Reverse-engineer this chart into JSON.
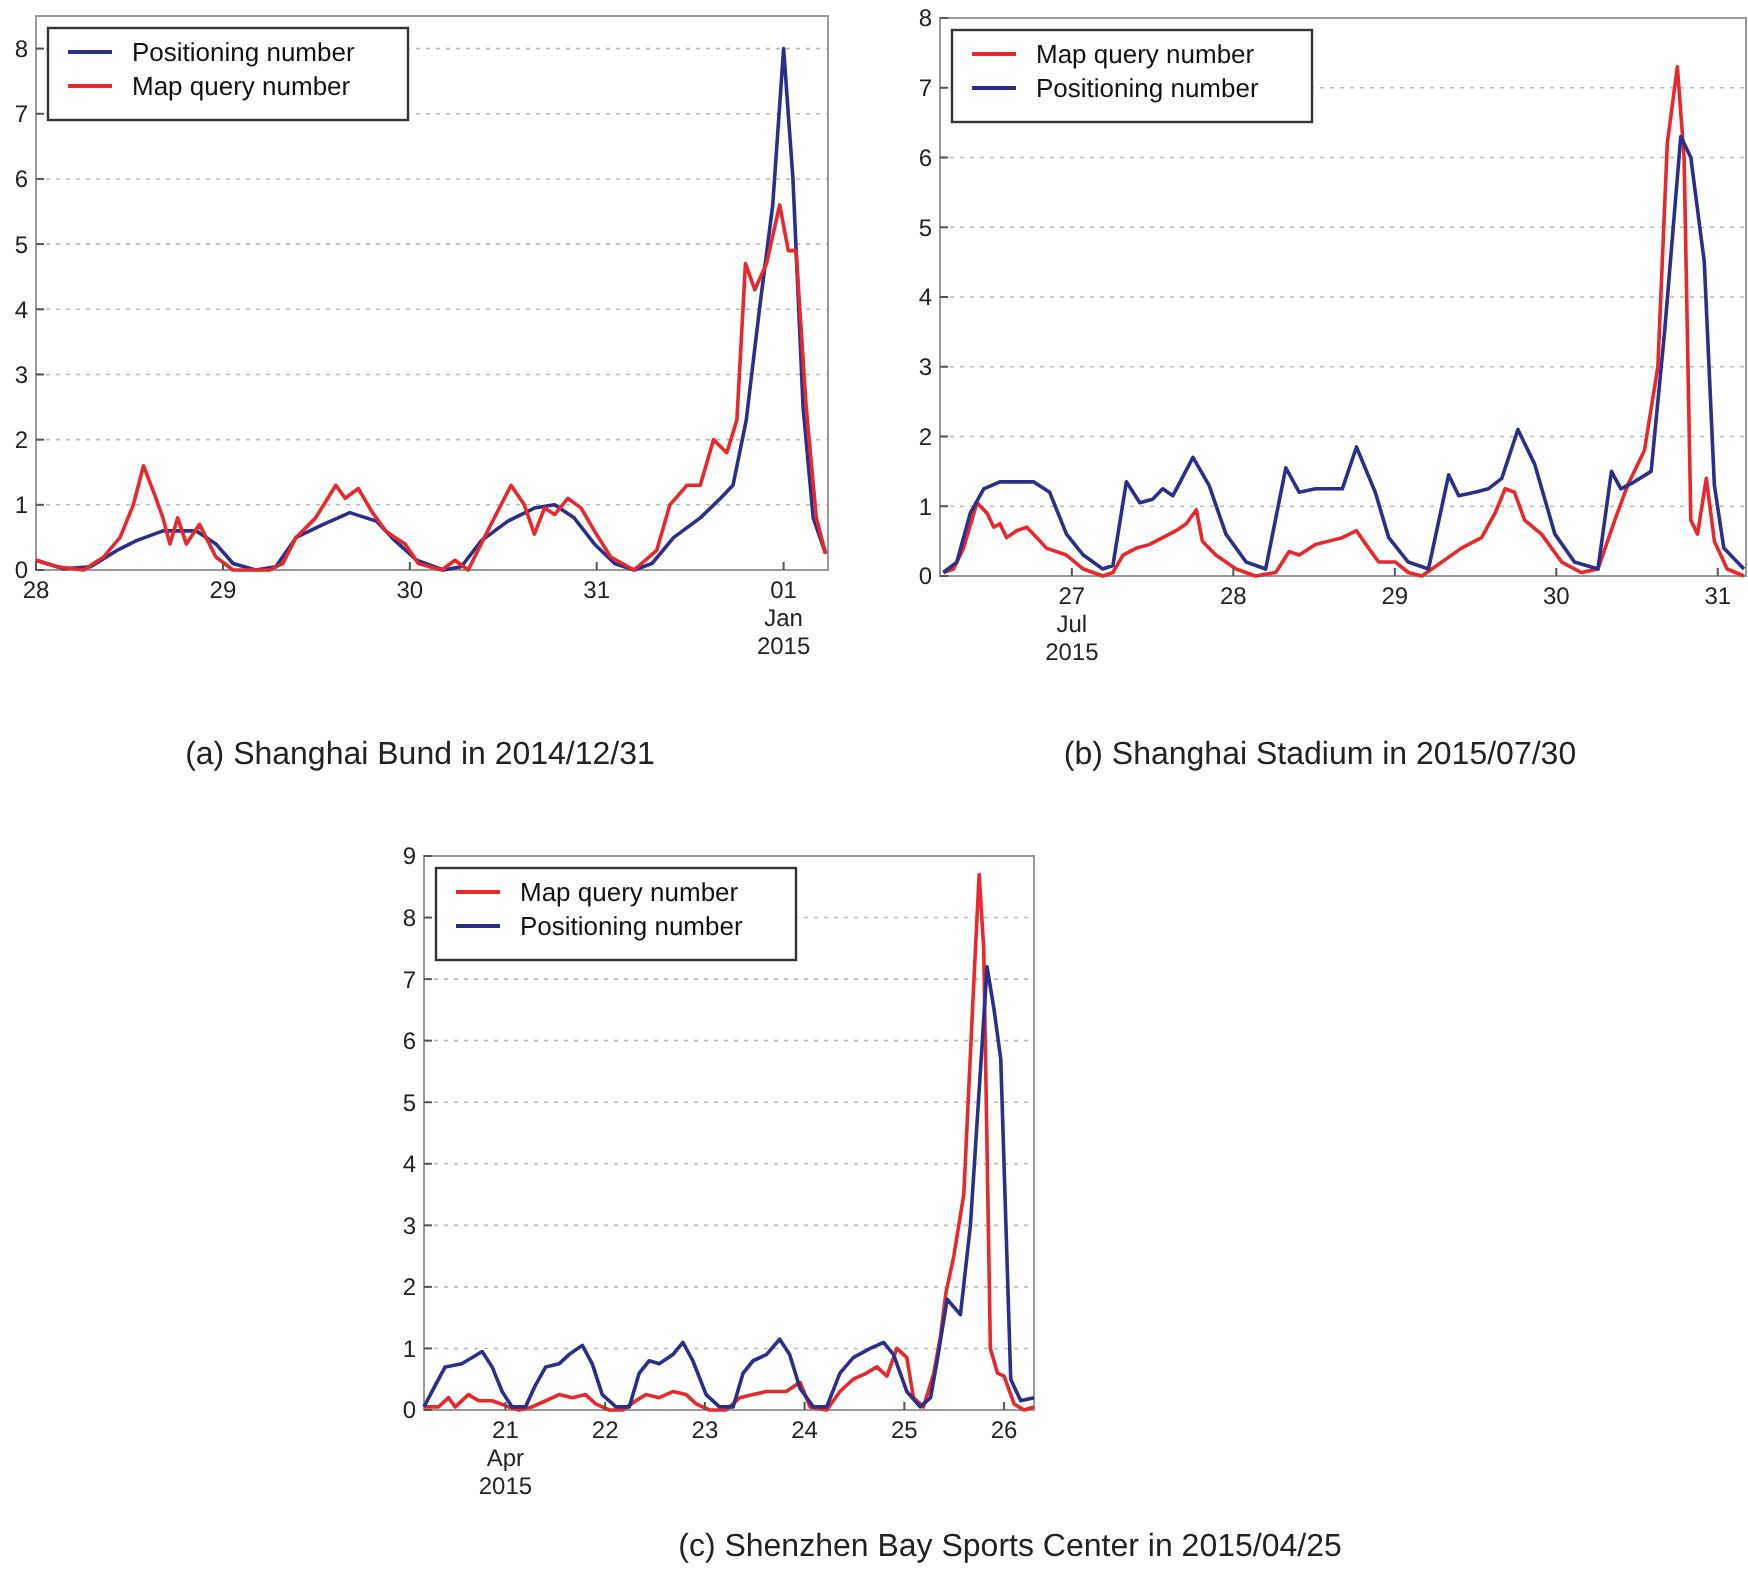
{
  "chart_data": [
    {
      "type": "line",
      "title": "(a) Shanghai Bund in 2014/12/31",
      "xlim": [
        "2014-12-28T00:00",
        "2015-01-01T05:42"
      ],
      "ylim": [
        0,
        8.5
      ],
      "yticks": [
        0,
        1,
        2,
        3,
        4,
        5,
        6,
        7,
        8
      ],
      "xticks": [
        {
          "value": "2014-12-28",
          "label": "28"
        },
        {
          "value": "2014-12-29",
          "label": "29"
        },
        {
          "value": "2014-12-30",
          "label": "30"
        },
        {
          "value": "2014-12-31",
          "label": "31"
        },
        {
          "value": "2015-01-01",
          "label": "01\nJan\n2015"
        }
      ],
      "grid": "y",
      "legend": "top left",
      "marker": "none",
      "line_style": "solid",
      "series": [
        {
          "name": "Positioning number",
          "color": "#2b2f8c",
          "x": [
            "2014-12-28T00:00",
            "2014-12-28T03:36",
            "2014-12-28T07:00",
            "2014-12-28T10:24",
            "2014-12-28T12:54",
            "2014-12-28T16:18",
            "2014-12-28T20:36",
            "2014-12-28T23:06",
            "2014-12-29T01:18",
            "2014-12-29T04:12",
            "2014-12-29T06:48",
            "2014-12-29T09:24",
            "2014-12-29T12:54",
            "2014-12-29T16:18",
            "2014-12-29T19:42",
            "2014-12-29T22:06",
            "2014-12-30T00:54",
            "2014-12-30T04:18",
            "2014-12-30T06:36",
            "2014-12-30T09:12",
            "2014-12-30T12:36",
            "2014-12-30T16:00",
            "2014-12-30T18:36",
            "2014-12-30T21:06",
            "2014-12-30T23:42",
            "2014-12-31T02:18",
            "2014-12-31T04:48",
            "2014-12-31T07:06",
            "2014-12-31T09:54",
            "2014-12-31T13:18",
            "2014-12-31T15:54",
            "2014-12-31T17:30",
            "2014-12-31T19:12",
            "2014-12-31T20:54",
            "2014-12-31T22:36",
            "2015-01-01T00:00",
            "2015-01-01T01:12",
            "2015-01-01T02:30",
            "2015-01-01T03:48",
            "2015-01-01T05:24"
          ],
          "values": [
            0.15,
            0.02,
            0.05,
            0.3,
            0.45,
            0.6,
            0.6,
            0.4,
            0.1,
            0,
            0.05,
            0.5,
            0.7,
            0.88,
            0.75,
            0.45,
            0.15,
            0,
            0.05,
            0.45,
            0.75,
            0.95,
            1,
            0.8,
            0.4,
            0.1,
            0,
            0.1,
            0.5,
            0.8,
            1.1,
            1.3,
            2.3,
            4,
            5.6,
            8,
            6,
            2.5,
            0.8,
            0.25
          ]
        },
        {
          "name": "Map query number",
          "color": "#e8282b",
          "x": [
            "2014-12-28T00:00",
            "2014-12-28T02:42",
            "2014-12-28T06:06",
            "2014-12-28T08:42",
            "2014-12-28T10:48",
            "2014-12-28T12:30",
            "2014-12-28T13:48",
            "2014-12-28T15:06",
            "2014-12-28T16:18",
            "2014-12-28T17:12",
            "2014-12-28T18:12",
            "2014-12-28T19:18",
            "2014-12-28T21:00",
            "2014-12-28T23:06",
            "2014-12-29T01:18",
            "2014-12-29T06:00",
            "2014-12-29T07:42",
            "2014-12-29T09:24",
            "2014-12-29T11:54",
            "2014-12-29T14:30",
            "2014-12-29T15:42",
            "2014-12-29T17:24",
            "2014-12-29T19:06",
            "2014-12-29T20:54",
            "2014-12-29T22:06",
            "2014-12-29T23:24",
            "2014-12-30T01:06",
            "2014-12-30T04:06",
            "2014-12-30T05:48",
            "2014-12-30T07:30",
            "2014-12-30T10:00",
            "2014-12-30T13:00",
            "2014-12-30T14:42",
            "2014-12-30T16:00",
            "2014-12-30T17:18",
            "2014-12-30T18:36",
            "2014-12-30T20:18",
            "2014-12-30T22:00",
            "2014-12-30T23:42",
            "2014-12-31T01:48",
            "2014-12-31T04:48",
            "2014-12-31T07:42",
            "2014-12-31T09:24",
            "2014-12-31T11:36",
            "2014-12-31T13:18",
            "2014-12-31T15:00",
            "2014-12-31T16:42",
            "2014-12-31T18:00",
            "2014-12-31T19:06",
            "2014-12-31T20:18",
            "2014-12-31T21:48",
            "2014-12-31T23:30",
            "2015-01-01T00:36",
            "2015-01-01T01:36",
            "2015-01-01T02:54",
            "2015-01-01T04:12",
            "2015-01-01T05:24"
          ],
          "values": [
            0.15,
            0.05,
            0,
            0.2,
            0.5,
            1,
            1.6,
            1.2,
            0.8,
            0.4,
            0.8,
            0.4,
            0.7,
            0.2,
            0,
            0,
            0.1,
            0.5,
            0.8,
            1.3,
            1.1,
            1.25,
            0.9,
            0.6,
            0.5,
            0.4,
            0.1,
            0,
            0.15,
            0,
            0.6,
            1.3,
            1,
            0.55,
            0.95,
            0.85,
            1.1,
            0.95,
            0.6,
            0.2,
            0,
            0.3,
            1,
            1.3,
            1.3,
            2,
            1.8,
            2.3,
            4.7,
            4.3,
            4.7,
            5.6,
            4.9,
            4.9,
            2.5,
            0.8,
            0.25
          ]
        }
      ]
    },
    {
      "type": "line",
      "title": "(b) Shanghai Stadium in 2015/07/30",
      "xlim": [
        "2015-07-26T04:24",
        "2015-07-31T04:12"
      ],
      "ylim": [
        0,
        8
      ],
      "yticks": [
        0,
        1,
        2,
        3,
        4,
        5,
        6,
        7,
        8
      ],
      "xticks": [
        {
          "value": "2015-07-27",
          "label": "27\nJul\n2015"
        },
        {
          "value": "2015-07-28",
          "label": "28"
        },
        {
          "value": "2015-07-29",
          "label": "29"
        },
        {
          "value": "2015-07-30",
          "label": "30"
        },
        {
          "value": "2015-07-31",
          "label": "31"
        }
      ],
      "grid": "y",
      "legend": "top left",
      "marker": "none",
      "line_style": "solid",
      "series": [
        {
          "name": "Map query number",
          "color": "#e8282b",
          "x": [
            "2015-07-26T04:54",
            "2015-07-26T06:24",
            "2015-07-26T07:54",
            "2015-07-26T09:54",
            "2015-07-26T11:24",
            "2015-07-26T12:24",
            "2015-07-26T13:18",
            "2015-07-26T14:18",
            "2015-07-26T15:48",
            "2015-07-26T17:18",
            "2015-07-26T18:48",
            "2015-07-26T20:12",
            "2015-07-26T23:12",
            "2015-07-27T01:42",
            "2015-07-27T04:36",
            "2015-07-27T06:06",
            "2015-07-27T07:36",
            "2015-07-27T09:36",
            "2015-07-27T11:30",
            "2015-07-27T13:30",
            "2015-07-27T15:30",
            "2015-07-27T17:00",
            "2015-07-27T18:30",
            "2015-07-27T19:24",
            "2015-07-27T21:24",
            "2015-07-28T00:24",
            "2015-07-28T03:18",
            "2015-07-28T06:18",
            "2015-07-28T08:18",
            "2015-07-28T09:48",
            "2015-07-28T12:12",
            "2015-07-28T14:12",
            "2015-07-28T16:12",
            "2015-07-28T18:18",
            "2015-07-28T20:06",
            "2015-07-28T21:36",
            "2015-07-29T00:06",
            "2015-07-29T02:00",
            "2015-07-29T04:00",
            "2015-07-29T07:00",
            "2015-07-29T09:54",
            "2015-07-29T12:54",
            "2015-07-29T14:54",
            "2015-07-29T16:24",
            "2015-07-29T17:48",
            "2015-07-29T19:18",
            "2015-07-29T21:48",
            "2015-07-30T00:48",
            "2015-07-30T03:42",
            "2015-07-30T06:12",
            "2015-07-30T08:42",
            "2015-07-30T10:36",
            "2015-07-30T13:06",
            "2015-07-30T15:06",
            "2015-07-30T16:30",
            "2015-07-30T18:00",
            "2015-07-30T19:00",
            "2015-07-30T20:00",
            "2015-07-30T21:00",
            "2015-07-30T22:18",
            "2015-07-30T23:30",
            "2015-07-31T01:24",
            "2015-07-31T03:54"
          ],
          "values": [
            0.05,
            0.1,
            0.4,
            1.05,
            0.9,
            0.7,
            0.75,
            0.55,
            0.65,
            0.7,
            0.55,
            0.4,
            0.3,
            0.1,
            0,
            0.05,
            0.3,
            0.4,
            0.45,
            0.55,
            0.65,
            0.75,
            0.95,
            0.5,
            0.3,
            0.1,
            0,
            0.05,
            0.35,
            0.3,
            0.45,
            0.5,
            0.55,
            0.65,
            0.4,
            0.2,
            0.2,
            0.05,
            0,
            0.2,
            0.4,
            0.55,
            0.9,
            1.25,
            1.2,
            0.8,
            0.6,
            0.2,
            0.05,
            0.1,
            0.8,
            1.3,
            1.8,
            3,
            6.2,
            7.3,
            6,
            0.8,
            0.6,
            1.4,
            0.5,
            0.1,
            0
          ]
        },
        {
          "name": "Positioning number",
          "color": "#2b2f8c",
          "x": [
            "2015-07-26T04:54",
            "2015-07-26T06:54",
            "2015-07-26T08:54",
            "2015-07-26T10:54",
            "2015-07-26T13:18",
            "2015-07-26T15:48",
            "2015-07-26T18:18",
            "2015-07-26T20:42",
            "2015-07-26T23:12",
            "2015-07-27T01:42",
            "2015-07-27T04:36",
            "2015-07-27T06:06",
            "2015-07-27T08:06",
            "2015-07-27T10:06",
            "2015-07-27T12:00",
            "2015-07-27T13:30",
            "2015-07-27T15:00",
            "2015-07-27T18:00",
            "2015-07-27T20:24",
            "2015-07-27T22:54",
            "2015-07-28T01:54",
            "2015-07-28T04:48",
            "2015-07-28T07:48",
            "2015-07-28T09:48",
            "2015-07-28T12:12",
            "2015-07-28T16:12",
            "2015-07-28T18:18",
            "2015-07-28T21:06",
            "2015-07-28T23:06",
            "2015-07-29T02:00",
            "2015-07-29T05:00",
            "2015-07-29T08:00",
            "2015-07-29T09:30",
            "2015-07-29T11:54",
            "2015-07-29T13:54",
            "2015-07-29T15:54",
            "2015-07-29T18:18",
            "2015-07-29T20:48",
            "2015-07-29T23:48",
            "2015-07-30T02:42",
            "2015-07-30T06:12",
            "2015-07-30T08:12",
            "2015-07-30T09:36",
            "2015-07-30T11:36",
            "2015-07-30T14:06",
            "2015-07-30T16:06",
            "2015-07-30T18:30",
            "2015-07-30T20:00",
            "2015-07-30T22:00",
            "2015-07-30T23:30",
            "2015-07-31T00:54",
            "2015-07-31T03:54"
          ],
          "values": [
            0.05,
            0.2,
            0.9,
            1.25,
            1.35,
            1.35,
            1.35,
            1.2,
            0.6,
            0.3,
            0.1,
            0.15,
            1.35,
            1.05,
            1.1,
            1.25,
            1.15,
            1.7,
            1.3,
            0.6,
            0.2,
            0.1,
            1.55,
            1.2,
            1.25,
            1.25,
            1.85,
            1.2,
            0.55,
            0.2,
            0.1,
            1.45,
            1.15,
            1.2,
            1.25,
            1.4,
            2.1,
            1.6,
            0.6,
            0.2,
            0.1,
            1.5,
            1.25,
            1.35,
            1.5,
            3.5,
            6.3,
            6,
            4.5,
            1.3,
            0.4,
            0.1
          ]
        }
      ]
    },
    {
      "type": "line",
      "title": "(c) Shenzhen Bay Sports Center in 2015/04/25",
      "xlim": [
        "2015-04-20T04:24",
        "2015-04-26T07:12"
      ],
      "ylim": [
        0,
        9
      ],
      "yticks": [
        0,
        1,
        2,
        3,
        4,
        5,
        6,
        7,
        8,
        9
      ],
      "xticks": [
        {
          "value": "2015-04-21",
          "label": "21\nApr\n2015"
        },
        {
          "value": "2015-04-22",
          "label": "22"
        },
        {
          "value": "2015-04-23",
          "label": "23"
        },
        {
          "value": "2015-04-24",
          "label": "24"
        },
        {
          "value": "2015-04-25",
          "label": "25"
        },
        {
          "value": "2015-04-26",
          "label": "26"
        }
      ],
      "grid": "y",
      "legend": "top left",
      "marker": "none",
      "line_style": "solid",
      "series": [
        {
          "name": "Map query number",
          "color": "#e8282b",
          "x": [
            "2015-04-20T04:24",
            "2015-04-20T07:54",
            "2015-04-20T10:18",
            "2015-04-20T11:54",
            "2015-04-20T15:06",
            "2015-04-20T17:36",
            "2015-04-20T20:48",
            "2015-04-21T00:48",
            "2015-04-21T03:12",
            "2015-04-21T06:24",
            "2015-04-21T09:42",
            "2015-04-21T12:54",
            "2015-04-21T16:06",
            "2015-04-21T19:18",
            "2015-04-21T21:42",
            "2015-04-22T01:00",
            "2015-04-22T04:12",
            "2015-04-22T07:24",
            "2015-04-22T09:48",
            "2015-04-22T13:00",
            "2015-04-22T16:18",
            "2015-04-22T19:30",
            "2015-04-22T21:54",
            "2015-04-23T01:06",
            "2015-04-23T05:06",
            "2015-04-23T08:24",
            "2015-04-23T11:36",
            "2015-04-23T14:48",
            "2015-04-23T19:36",
            "2015-04-23T22:54",
            "2015-04-24T01:18",
            "2015-04-24T05:18",
            "2015-04-24T08:30",
            "2015-04-24T11:42",
            "2015-04-24T14:54",
            "2015-04-24T17:24",
            "2015-04-24T19:48",
            "2015-04-24T22:12",
            "2015-04-25T00:36",
            "2015-04-25T02:12",
            "2015-04-25T04:36",
            "2015-04-25T07:06",
            "2015-04-25T08:42",
            "2015-04-25T10:00",
            "2015-04-25T11:54",
            "2015-04-25T14:18",
            "2015-04-25T16:24",
            "2015-04-25T18:00",
            "2015-04-25T19:06",
            "2015-04-25T20:42",
            "2015-04-25T22:24",
            "2015-04-26T00:00",
            "2015-04-26T02:24",
            "2015-04-26T04:48",
            "2015-04-26T07:12"
          ],
          "values": [
            0.05,
            0.05,
            0.2,
            0.05,
            0.25,
            0.15,
            0.15,
            0.05,
            0,
            0.05,
            0.15,
            0.25,
            0.2,
            0.25,
            0.1,
            0,
            0,
            0.15,
            0.25,
            0.2,
            0.3,
            0.25,
            0.1,
            0,
            0,
            0.2,
            0.25,
            0.3,
            0.3,
            0.45,
            0.05,
            0,
            0.3,
            0.5,
            0.6,
            0.7,
            0.55,
            1,
            0.85,
            0.2,
            0.05,
            0.6,
            1.2,
            1.9,
            2.5,
            3.5,
            6.5,
            8.7,
            7.5,
            1,
            0.6,
            0.55,
            0.1,
            0,
            0.05
          ]
        },
        {
          "name": "Positioning number",
          "color": "#2b2f8c",
          "x": [
            "2015-04-20T04:24",
            "2015-04-20T07:06",
            "2015-04-20T09:30",
            "2015-04-20T13:30",
            "2015-04-20T15:54",
            "2015-04-20T18:24",
            "2015-04-20T20:48",
            "2015-04-20T23:12",
            "2015-04-21T01:36",
            "2015-04-21T04:48",
            "2015-04-21T07:12",
            "2015-04-21T09:42",
            "2015-04-21T12:54",
            "2015-04-21T15:18",
            "2015-04-21T18:30",
            "2015-04-21T20:54",
            "2015-04-21T23:18",
            "2015-04-22T02:36",
            "2015-04-22T05:48",
            "2015-04-22T08:12",
            "2015-04-22T10:36",
            "2015-04-22T13:00",
            "2015-04-22T16:18",
            "2015-04-22T18:42",
            "2015-04-22T21:06",
            "2015-04-23T00:18",
            "2015-04-23T03:30",
            "2015-04-23T06:48",
            "2015-04-23T09:12",
            "2015-04-23T11:36",
            "2015-04-23T14:48",
            "2015-04-23T18:00",
            "2015-04-23T20:24",
            "2015-04-23T22:54",
            "2015-04-24T02:06",
            "2015-04-24T05:18",
            "2015-04-24T08:30",
            "2015-04-24T11:42",
            "2015-04-24T15:48",
            "2015-04-24T19:00",
            "2015-04-24T21:24",
            "2015-04-25T00:36",
            "2015-04-25T03:48",
            "2015-04-25T06:18",
            "2015-04-25T07:54",
            "2015-04-25T10:18",
            "2015-04-25T13:30",
            "2015-04-25T15:54",
            "2015-04-25T18:18",
            "2015-04-25T19:54",
            "2015-04-25T21:36",
            "2015-04-25T23:12",
            "2015-04-26T01:36",
            "2015-04-26T04:00",
            "2015-04-26T07:12"
          ],
          "values": [
            0.05,
            0.4,
            0.7,
            0.75,
            0.85,
            0.95,
            0.7,
            0.3,
            0.05,
            0.05,
            0.4,
            0.7,
            0.75,
            0.9,
            1.05,
            0.75,
            0.25,
            0.05,
            0.05,
            0.6,
            0.8,
            0.75,
            0.9,
            1.1,
            0.8,
            0.25,
            0.05,
            0.05,
            0.6,
            0.8,
            0.9,
            1.15,
            0.9,
            0.35,
            0.05,
            0.05,
            0.6,
            0.85,
            1,
            1.1,
            0.9,
            0.3,
            0.05,
            0.2,
            0.8,
            1.8,
            1.55,
            3,
            5.5,
            7.2,
            6.5,
            5.7,
            0.5,
            0.15,
            0.2
          ]
        }
      ]
    }
  ]
}
